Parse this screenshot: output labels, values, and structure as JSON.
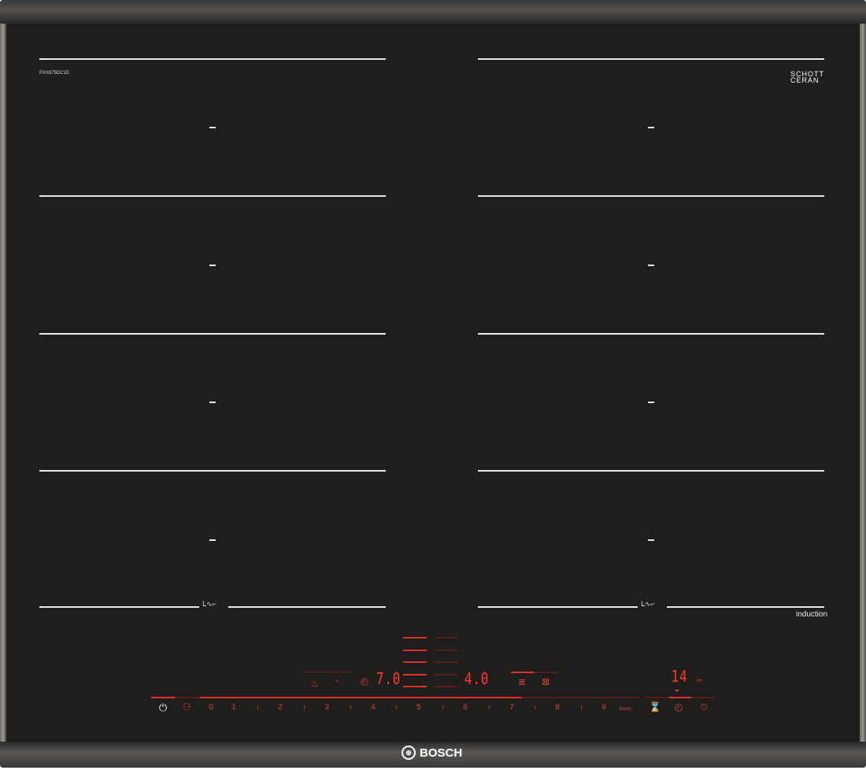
{
  "model": "PXX675DC1E",
  "brand": "BOSCH",
  "glass_brand": [
    "SCHOTT",
    "CERAN"
  ],
  "induction_label": "induction",
  "control_panel": {
    "power_levels": [
      "0",
      "1",
      "2",
      "3",
      "4",
      "5",
      "6",
      "7",
      "8",
      "9"
    ],
    "boost_label": "boost",
    "left_display": "7.0",
    "right_display": "4.0",
    "timer_display": "14",
    "timer_unit": "min",
    "icons": [
      "power-icon",
      "child-lock-icon",
      "timer-icon",
      "hourglass-icon",
      "kitchen-timer-icon",
      "stopwatch-icon"
    ]
  },
  "colors": {
    "display": "#ff3a30",
    "glass": "#1f1e1d"
  }
}
